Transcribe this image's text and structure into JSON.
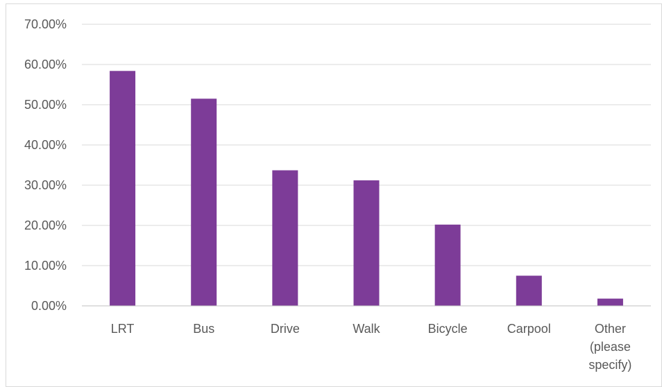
{
  "chart_data": {
    "type": "bar",
    "categories": [
      "LRT",
      "Bus",
      "Drive",
      "Walk",
      "Bicycle",
      "Carpool",
      "Other (please specify)"
    ],
    "category_label_lines": [
      [
        "LRT"
      ],
      [
        "Bus"
      ],
      [
        "Drive"
      ],
      [
        "Walk"
      ],
      [
        "Bicycle"
      ],
      [
        "Carpool"
      ],
      [
        "Other",
        "(please",
        "specify)"
      ]
    ],
    "values": [
      58.4,
      51.5,
      33.7,
      31.2,
      20.2,
      7.5,
      1.8
    ],
    "ylim": [
      0,
      70
    ],
    "ytick_step": 10,
    "ytick_labels": [
      "0.00%",
      "10.00%",
      "20.00%",
      "30.00%",
      "40.00%",
      "50.00%",
      "60.00%",
      "70.00%"
    ],
    "grid": true,
    "legend": "none",
    "bar_color": "#7d3c98",
    "grid_color": "#d9d9d9",
    "axis_color": "#bfbfbf",
    "label_color": "#595959"
  }
}
